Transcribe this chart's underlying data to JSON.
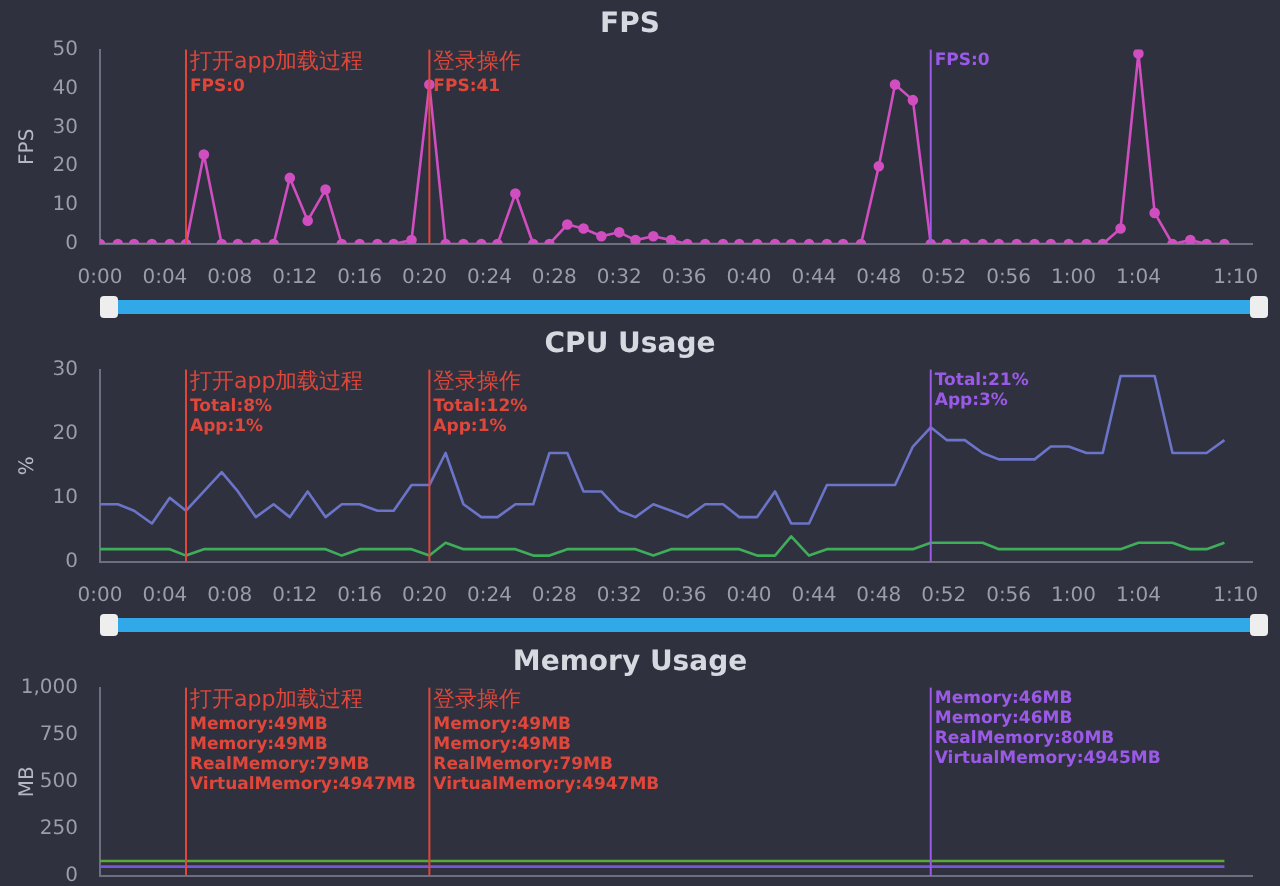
{
  "chart_data": [
    {
      "type": "line",
      "title": "FPS",
      "ylabel": "FPS",
      "marker": "circle",
      "x": [
        0,
        1.1,
        2.1,
        3.2,
        4.3,
        5.3,
        6.4,
        7.5,
        8.5,
        9.6,
        10.7,
        11.7,
        12.8,
        13.9,
        14.9,
        16,
        17.1,
        18.1,
        19.2,
        20.3,
        21.3,
        22.4,
        23.5,
        24.5,
        25.6,
        26.7,
        27.7,
        28.8,
        29.8,
        30.9,
        32,
        33,
        34.1,
        35.2,
        36.2,
        37.3,
        38.4,
        39.4,
        40.5,
        41.6,
        42.6,
        43.7,
        44.8,
        45.8,
        46.9,
        48,
        49,
        50.1,
        51.2,
        52.2,
        53.3,
        54.4,
        55.4,
        56.5,
        57.6,
        58.6,
        59.7,
        60.8,
        61.8,
        62.9,
        64,
        65,
        66.1,
        67.2,
        68.2,
        69.3
      ],
      "series": [
        {
          "color": "#d04ec0",
          "values": [
            0,
            0,
            0,
            0,
            0,
            0,
            23,
            0,
            0,
            0,
            0,
            17,
            6,
            14,
            0,
            0,
            0,
            0,
            1,
            41,
            0,
            0,
            0,
            0,
            13,
            0,
            0,
            5,
            4,
            2,
            3,
            1,
            2,
            1,
            0,
            0,
            0,
            0,
            0,
            0,
            0,
            0,
            0,
            0,
            0,
            20,
            41,
            37,
            0,
            0,
            0,
            0,
            0,
            0,
            0,
            0,
            0,
            0,
            0,
            4,
            49,
            8,
            0,
            1,
            0,
            0
          ]
        }
      ],
      "xlim": [
        0,
        71
      ],
      "xticks": [
        {
          "value": 0,
          "label": "0:00"
        },
        {
          "value": 4,
          "label": "0:04"
        },
        {
          "value": 8,
          "label": "0:08"
        },
        {
          "value": 12,
          "label": "0:12"
        },
        {
          "value": 16,
          "label": "0:16"
        },
        {
          "value": 20,
          "label": "0:20"
        },
        {
          "value": 24,
          "label": "0:24"
        },
        {
          "value": 28,
          "label": "0:28"
        },
        {
          "value": 32,
          "label": "0:32"
        },
        {
          "value": 36,
          "label": "0:36"
        },
        {
          "value": 40,
          "label": "0:40"
        },
        {
          "value": 44,
          "label": "0:44"
        },
        {
          "value": 48,
          "label": "0:48"
        },
        {
          "value": 52,
          "label": "0:52"
        },
        {
          "value": 56,
          "label": "0:56"
        },
        {
          "value": 60,
          "label": "1:00"
        },
        {
          "value": 64,
          "label": "1:04"
        },
        {
          "value": 70,
          "label": "1:10"
        }
      ],
      "ylim": [
        0,
        50
      ],
      "yticks": [
        0,
        10,
        20,
        30,
        40,
        50
      ],
      "ref_lines": [
        {
          "axis": "x",
          "value": 5.3,
          "color": "#e0463a"
        },
        {
          "axis": "x",
          "value": 20.3,
          "color": "#e0463a"
        },
        {
          "axis": "x",
          "value": 51.2,
          "color": "#9b59e8"
        }
      ],
      "annotations": [
        {
          "text": "打开app加载过程\nFPS:0",
          "x": 5.3,
          "y": 50
        },
        {
          "text": "登录操作\nFPS:41",
          "x": 20.3,
          "y": 50
        },
        {
          "text": "FPS:0",
          "x": 51.2,
          "y": 50
        }
      ]
    },
    {
      "type": "line",
      "title": "CPU Usage",
      "ylabel": "%",
      "marker": "none",
      "x": [
        0,
        1.1,
        2.1,
        3.2,
        4.3,
        5.3,
        6.4,
        7.5,
        8.5,
        9.6,
        10.7,
        11.7,
        12.8,
        13.9,
        14.9,
        16,
        17.1,
        18.1,
        19.2,
        20.3,
        21.3,
        22.4,
        23.5,
        24.5,
        25.6,
        26.7,
        27.7,
        28.8,
        29.8,
        30.9,
        32,
        33,
        34.1,
        35.2,
        36.2,
        37.3,
        38.4,
        39.4,
        40.5,
        41.6,
        42.6,
        43.7,
        44.8,
        45.8,
        46.9,
        48,
        49,
        50.1,
        51.2,
        52.2,
        53.3,
        54.4,
        55.4,
        56.5,
        57.6,
        58.6,
        59.7,
        60.8,
        61.8,
        62.9,
        64,
        65,
        66.1,
        67.2,
        68.2,
        69.3
      ],
      "series": [
        {
          "color": "#6b74c8",
          "values": [
            9,
            9,
            8,
            6,
            10,
            8,
            11,
            14,
            11,
            7,
            9,
            7,
            11,
            7,
            9,
            9,
            8,
            8,
            12,
            12,
            17,
            9,
            7,
            7,
            9,
            9,
            17,
            17,
            11,
            11,
            8,
            7,
            9,
            8,
            7,
            9,
            9,
            7,
            7,
            11,
            6,
            6,
            12,
            12,
            12,
            12,
            12,
            18,
            21,
            19,
            19,
            17,
            16,
            16,
            16,
            18,
            18,
            17,
            17,
            29,
            29,
            29,
            17,
            17,
            17,
            19
          ]
        },
        {
          "color": "#3fae5a",
          "values": [
            2,
            2,
            2,
            2,
            2,
            1,
            2,
            2,
            2,
            2,
            2,
            2,
            2,
            2,
            1,
            2,
            2,
            2,
            2,
            1,
            3,
            2,
            2,
            2,
            2,
            1,
            1,
            2,
            2,
            2,
            2,
            2,
            1,
            2,
            2,
            2,
            2,
            2,
            1,
            1,
            4,
            1,
            2,
            2,
            2,
            2,
            2,
            2,
            3,
            3,
            3,
            3,
            2,
            2,
            2,
            2,
            2,
            2,
            2,
            2,
            3,
            3,
            3,
            2,
            2,
            3
          ]
        }
      ],
      "xlim": [
        0,
        71
      ],
      "xticks": [
        {
          "value": 0,
          "label": "0:00"
        },
        {
          "value": 4,
          "label": "0:04"
        },
        {
          "value": 8,
          "label": "0:08"
        },
        {
          "value": 12,
          "label": "0:12"
        },
        {
          "value": 16,
          "label": "0:16"
        },
        {
          "value": 20,
          "label": "0:20"
        },
        {
          "value": 24,
          "label": "0:24"
        },
        {
          "value": 28,
          "label": "0:28"
        },
        {
          "value": 32,
          "label": "0:32"
        },
        {
          "value": 36,
          "label": "0:36"
        },
        {
          "value": 40,
          "label": "0:40"
        },
        {
          "value": 44,
          "label": "0:44"
        },
        {
          "value": 48,
          "label": "0:48"
        },
        {
          "value": 52,
          "label": "0:52"
        },
        {
          "value": 56,
          "label": "0:56"
        },
        {
          "value": 60,
          "label": "1:00"
        },
        {
          "value": 64,
          "label": "1:04"
        },
        {
          "value": 70,
          "label": "1:10"
        }
      ],
      "ylim": [
        0,
        30
      ],
      "yticks": [
        0,
        10,
        20,
        30
      ],
      "ref_lines": [
        {
          "axis": "x",
          "value": 5.3,
          "color": "#e0463a"
        },
        {
          "axis": "x",
          "value": 20.3,
          "color": "#e0463a"
        },
        {
          "axis": "x",
          "value": 51.2,
          "color": "#9b59e8"
        }
      ],
      "annotations": [
        {
          "text": "打开app加载过程\nTotal:8%\nApp:1%",
          "x": 5.3,
          "y": 30
        },
        {
          "text": "登录操作\nTotal:12%\nApp:1%",
          "x": 20.3,
          "y": 30
        },
        {
          "text": "Total:21%\nApp:3%",
          "x": 51.2,
          "y": 30
        }
      ]
    },
    {
      "type": "line",
      "title": "Memory Usage",
      "ylabel": "MB",
      "marker": "none",
      "tick_labels": "y",
      "x": [
        0,
        1.1,
        2.1,
        3.2,
        4.3,
        5.3,
        6.4,
        7.5,
        8.5,
        9.6,
        10.7,
        11.7,
        12.8,
        13.9,
        14.9,
        16,
        17.1,
        18.1,
        19.2,
        20.3,
        21.3,
        22.4,
        23.5,
        24.5,
        25.6,
        26.7,
        27.7,
        28.8,
        29.8,
        30.9,
        32,
        33,
        34.1,
        35.2,
        36.2,
        37.3,
        38.4,
        39.4,
        40.5,
        41.6,
        42.6,
        43.7,
        44.8,
        45.8,
        46.9,
        48,
        49,
        50.1,
        51.2,
        52.2,
        53.3,
        54.4,
        55.4,
        56.5,
        57.6,
        58.6,
        59.7,
        60.8,
        61.8,
        62.9,
        64,
        65,
        66.1,
        67.2,
        68.2,
        69.3
      ],
      "series": [
        {
          "color": "#5aa83a",
          "values": [
            80,
            80,
            80,
            80,
            80,
            80,
            80,
            80,
            80,
            80,
            80,
            80,
            80,
            80,
            80,
            80,
            80,
            80,
            80,
            80,
            80,
            80,
            80,
            80,
            80,
            80,
            80,
            80,
            80,
            80,
            80,
            80,
            80,
            80,
            80,
            80,
            80,
            80,
            80,
            80,
            80,
            80,
            80,
            80,
            80,
            80,
            80,
            80,
            80,
            80,
            80,
            80,
            80,
            80,
            80,
            80,
            80,
            80,
            80,
            80,
            80,
            80,
            80,
            80,
            80,
            80
          ]
        },
        {
          "color": "#7a55d8",
          "values": [
            50,
            50,
            50,
            50,
            50,
            50,
            50,
            50,
            50,
            50,
            50,
            50,
            50,
            50,
            50,
            50,
            50,
            50,
            50,
            50,
            50,
            50,
            50,
            50,
            50,
            50,
            50,
            50,
            50,
            50,
            50,
            50,
            50,
            50,
            50,
            50,
            50,
            50,
            50,
            50,
            50,
            50,
            50,
            50,
            50,
            50,
            50,
            50,
            50,
            50,
            50,
            50,
            50,
            50,
            50,
            50,
            50,
            50,
            50,
            50,
            50,
            50,
            50,
            50,
            50,
            50
          ]
        }
      ],
      "xlim": [
        0,
        71
      ],
      "ylim": [
        0,
        1000
      ],
      "yticks": [
        0,
        250,
        500,
        750,
        {
          "value": 1000,
          "label": "1,000"
        }
      ],
      "ref_lines": [
        {
          "axis": "x",
          "value": 5.3,
          "color": "#e0463a"
        },
        {
          "axis": "x",
          "value": 20.3,
          "color": "#e0463a"
        },
        {
          "axis": "x",
          "value": 51.2,
          "color": "#9b59e8"
        }
      ],
      "annotations": [
        {
          "text": "打开app加载过程\nMemory:49MB\nMemory:49MB\nRealMemory:79MB\nVirtualMemory:4947MB",
          "x": 5.3,
          "y": 1000
        },
        {
          "text": "登录操作\nMemory:49MB\nMemory:49MB\nRealMemory:79MB\nVirtualMemory:4947MB",
          "x": 20.3,
          "y": 1000
        },
        {
          "text": "Memory:46MB\nMemory:46MB\nRealMemory:80MB\nVirtualMemory:4945MB",
          "x": 51.2,
          "y": 1000
        }
      ]
    }
  ]
}
